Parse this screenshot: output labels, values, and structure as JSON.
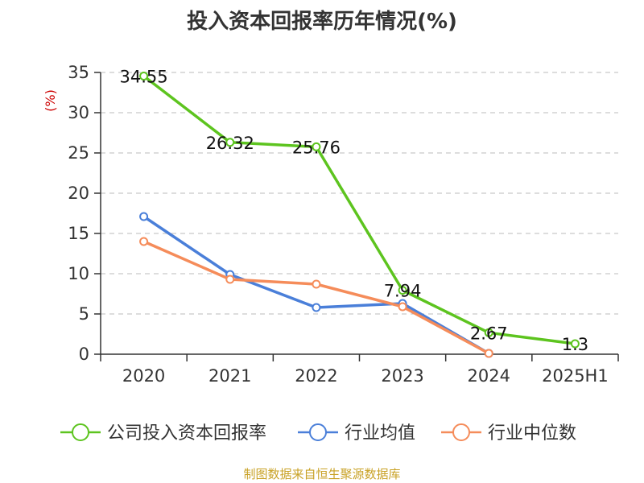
{
  "title": "投入资本回报率历年情况(%)",
  "source": "制图数据来自恒生聚源数据库",
  "colors": {
    "company": "#5dc41f",
    "avg": "#4a7fd9",
    "median": "#f58c5a",
    "axis": "#333333",
    "grid": "#bbbbbb",
    "ylabel": "#cc0000",
    "source": "#c9a227"
  },
  "chart_data": {
    "type": "line",
    "title": "投入资本回报率历年情况(%)",
    "xlabel": "",
    "ylabel": "(%)",
    "ylim": [
      0,
      35
    ],
    "yticks": [
      0,
      5,
      10,
      15,
      20,
      25,
      30,
      35
    ],
    "categories": [
      "2020",
      "2021",
      "2022",
      "2023",
      "2024",
      "2025H1"
    ],
    "grid": "horizontal dashed",
    "legend": "bottom",
    "series": [
      {
        "name": "公司投入资本回报率",
        "values": [
          34.55,
          26.32,
          25.76,
          7.94,
          2.67,
          1.3
        ],
        "labels": [
          "34.55",
          "26.32",
          "25.76",
          "7.94",
          "2.67",
          "1.3"
        ]
      },
      {
        "name": "行业均值",
        "values": [
          17.1,
          9.9,
          5.8,
          6.3,
          0.1,
          null
        ]
      },
      {
        "name": "行业中位数",
        "values": [
          14.0,
          9.3,
          8.7,
          5.9,
          0.1,
          null
        ]
      }
    ]
  }
}
